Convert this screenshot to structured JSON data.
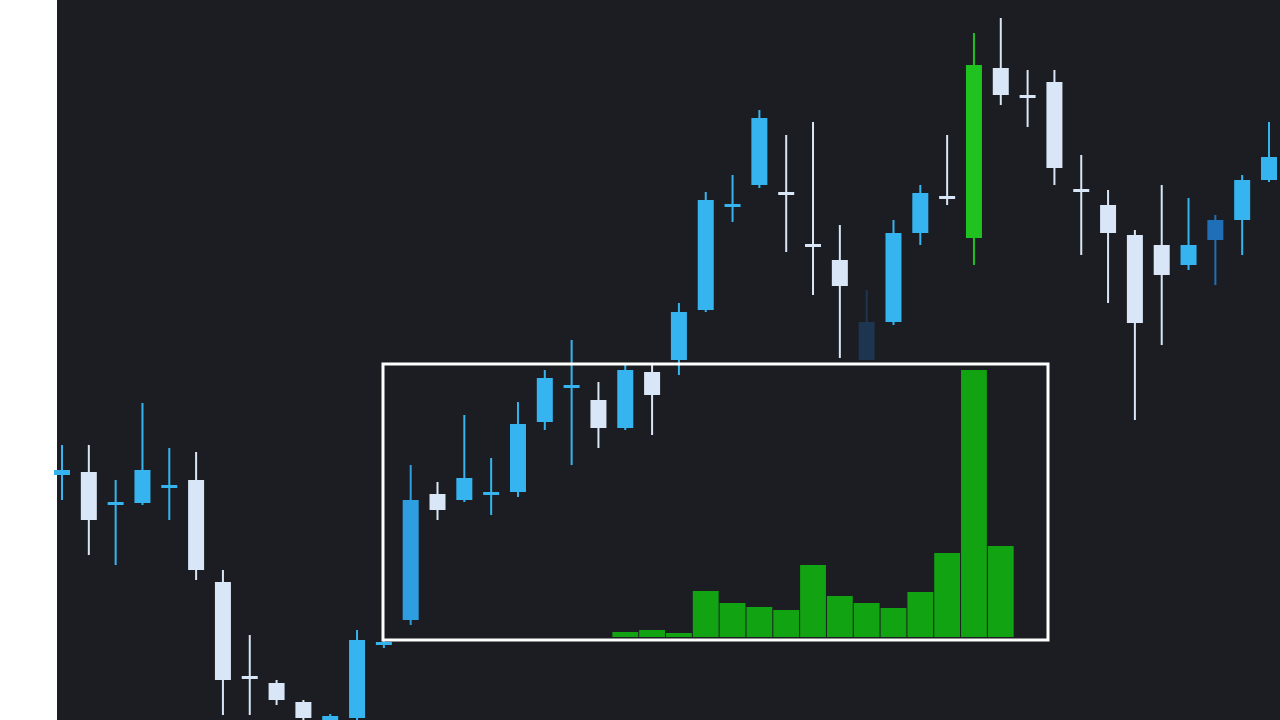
{
  "chart_data": {
    "type": "candlestick",
    "categories": [
      null,
      null,
      null,
      null,
      null,
      null,
      null,
      null,
      null,
      null,
      null,
      null,
      null,
      null,
      null,
      null,
      null,
      null,
      null,
      null,
      null,
      null,
      null,
      null,
      null,
      null,
      null,
      null,
      null,
      null,
      null,
      null,
      null,
      null,
      null,
      null,
      null,
      null,
      null,
      null,
      null,
      null,
      null,
      null,
      null,
      null
    ],
    "open": [
      245,
      248,
      217,
      217,
      234,
      240,
      138,
      44,
      37,
      18,
      0,
      2,
      77,
      100,
      226,
      220,
      226,
      228,
      298,
      333,
      320,
      292,
      348,
      360,
      410,
      515,
      535,
      528,
      476,
      460,
      360,
      398,
      487,
      524,
      482,
      652,
      625,
      638,
      531,
      515,
      485,
      475,
      455,
      480,
      500,
      540
    ],
    "high": [
      275,
      275,
      240,
      317,
      272,
      268,
      150,
      85,
      40,
      20,
      6,
      90,
      80,
      255,
      238,
      305,
      262,
      318,
      350,
      380,
      338,
      355,
      355,
      417,
      528,
      545,
      610,
      585,
      598,
      495,
      430,
      500,
      535,
      585,
      687,
      702,
      650,
      650,
      565,
      530,
      490,
      535,
      522,
      505,
      545,
      598
    ],
    "low": [
      220,
      165,
      155,
      215,
      200,
      140,
      5,
      5,
      15,
      0,
      0,
      0,
      72,
      95,
      200,
      218,
      205,
      223,
      290,
      255,
      272,
      290,
      285,
      345,
      408,
      498,
      532,
      468,
      425,
      362,
      360,
      395,
      475,
      515,
      455,
      615,
      593,
      535,
      465,
      417,
      300,
      375,
      450,
      435,
      465,
      538
    ],
    "close": [
      250,
      200,
      218,
      250,
      235,
      150,
      40,
      42,
      20,
      2,
      4,
      80,
      78,
      220,
      210,
      242,
      228,
      296,
      342,
      335,
      292,
      350,
      325,
      408,
      520,
      516,
      602,
      526,
      474,
      434,
      398,
      487,
      527,
      522,
      655,
      625,
      623,
      552,
      529,
      487,
      397,
      445,
      475,
      500,
      540,
      563
    ],
    "colors": [
      "#35b4f0",
      "#d8e6f7",
      "#35b4f0",
      "#35b4f0",
      "#35b4f0",
      "#d8e6f7",
      "#d8e6f7",
      "#d8e6f7",
      "#d8e6f7",
      "#d8e6f7",
      "#35b4f0",
      "#35b4f0",
      "#35b4f0",
      "#2f9ee0",
      "#d8e6f7",
      "#35b4f0",
      "#35b4f0",
      "#35b4f0",
      "#35b4f0",
      "#35b4f0",
      "#d8e6f7",
      "#35b4f0",
      "#d8e6f7",
      "#35b4f0",
      "#35b4f0",
      "#35b4f0",
      "#35b4f0",
      "#d8e6f7",
      "#d8e6f7",
      "#d8e6f7",
      "#1e3550",
      "#35b4f0",
      "#35b4f0",
      "#d8e6f7",
      "#1fc21f",
      "#d8e6f7",
      "#d8e6f7",
      "#d8e6f7",
      "#d8e6f7",
      "#d8e6f7",
      "#d8e6f7",
      "#d8e6f7",
      "#35b4f0",
      "#1e6fb8",
      "#35b4f0",
      "#35b4f0"
    ],
    "volume": {
      "color": "#11a311",
      "values": [
        null,
        null,
        null,
        null,
        null,
        null,
        null,
        null,
        null,
        null,
        null,
        null,
        null,
        null,
        null,
        null,
        null,
        null,
        null,
        null,
        null,
        5,
        7,
        4,
        46,
        34,
        30,
        27,
        72,
        41,
        34,
        29,
        45,
        84,
        267,
        91,
        null,
        null,
        null,
        null,
        null,
        null,
        null,
        null,
        null,
        null
      ]
    },
    "ylim": [
      0,
      720
    ]
  }
}
